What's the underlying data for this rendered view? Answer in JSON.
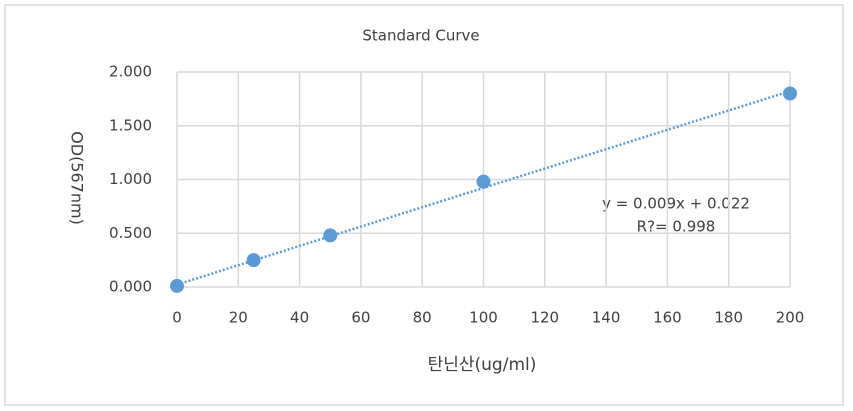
{
  "chart_data": {
    "type": "scatter",
    "title": "Standard Curve",
    "x_label": "탄닌산(ug/ml)",
    "y_label": "OD(567nm)",
    "x": [
      0,
      25,
      50,
      100,
      200
    ],
    "series": [
      {
        "color": "#5b9bd5",
        "values": [
          0.01,
          0.25,
          0.48,
          0.98,
          1.8
        ]
      }
    ],
    "trendline": {
      "slope": 0.009,
      "intercept": 0.022
    },
    "annotations": [
      "y = 0.009x + 0.022",
      "R?= 0.998"
    ],
    "xlim": [
      0,
      200
    ],
    "xticks": [
      0,
      20,
      40,
      60,
      80,
      100,
      120,
      140,
      160,
      180,
      200
    ],
    "ylim": [
      0,
      2
    ],
    "yticks": [
      {
        "value": 0,
        "label": "0.000"
      },
      {
        "value": 0.5,
        "label": "0.500"
      },
      {
        "value": 1,
        "label": "1.000"
      },
      {
        "value": 1.5,
        "label": "1.500"
      },
      {
        "value": 2,
        "label": "2.000"
      }
    ],
    "grid": true
  }
}
